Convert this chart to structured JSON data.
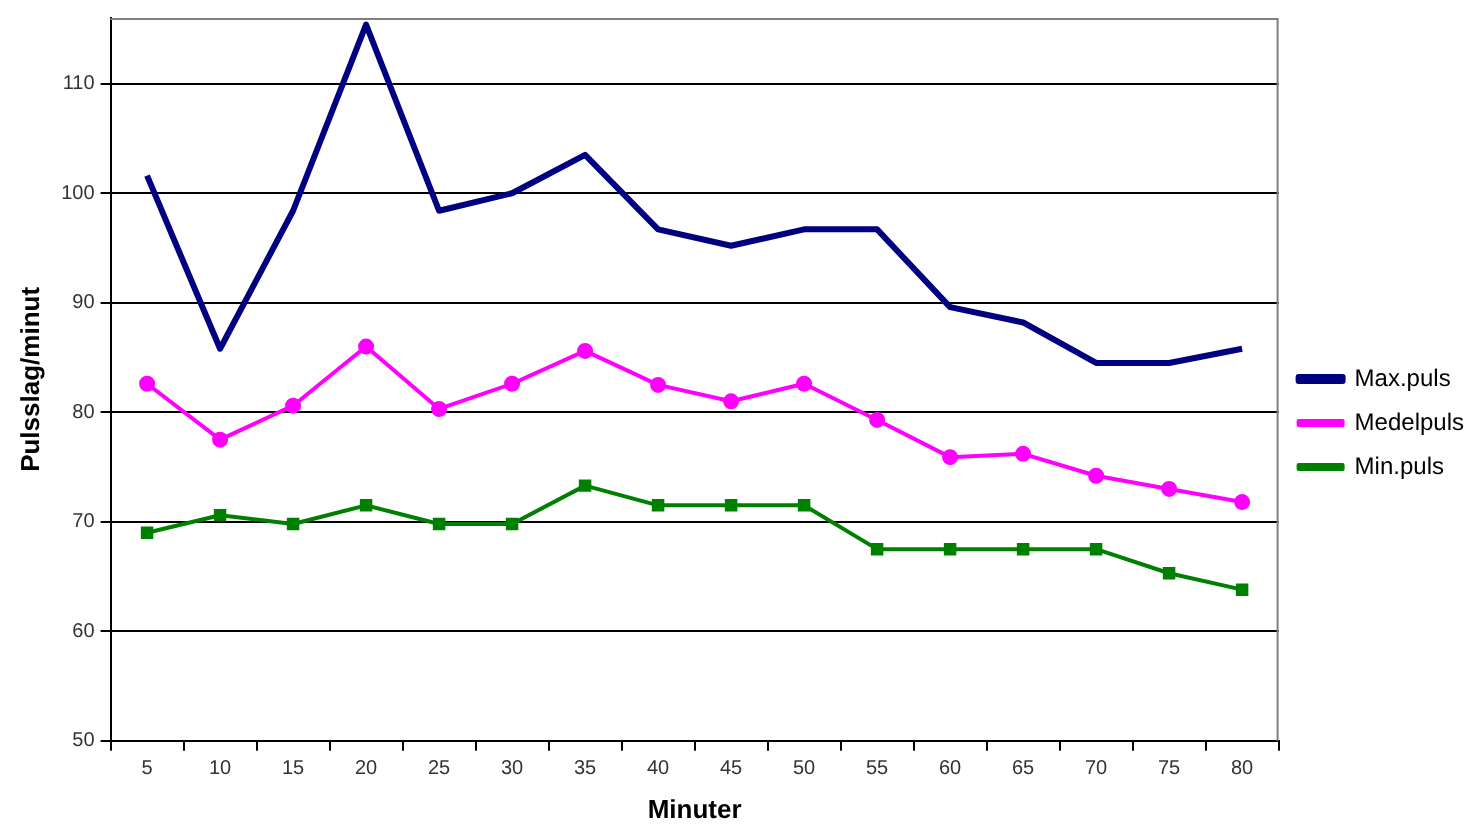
{
  "chart_data": {
    "type": "line",
    "xlabel": "Minuter",
    "ylabel": "Pulsslag/minut",
    "categories": [
      "5",
      "10",
      "15",
      "20",
      "25",
      "30",
      "35",
      "40",
      "45",
      "50",
      "55",
      "60",
      "65",
      "70",
      "75",
      "80"
    ],
    "ylim": [
      50,
      116
    ],
    "yticks": [
      50,
      60,
      70,
      80,
      90,
      100,
      110
    ],
    "grid": "y",
    "legend": "right",
    "series": [
      {
        "name": "Max.puls",
        "color": "#000080",
        "marker": "none",
        "values": [
          101.6,
          85.8,
          98.4,
          115.4,
          98.4,
          100,
          103.5,
          96.7,
          95.2,
          96.7,
          96.7,
          89.6,
          88.2,
          84.5,
          84.5,
          85.8
        ]
      },
      {
        "name": "Medelpuls",
        "color": "#ff00ff",
        "marker": "circle",
        "values": [
          82.6,
          77.5,
          80.6,
          86.0,
          80.3,
          82.6,
          85.6,
          82.5,
          81.0,
          82.6,
          79.3,
          75.9,
          76.2,
          74.2,
          73.0,
          71.8
        ]
      },
      {
        "name": "Min.puls",
        "color": "#008000",
        "marker": "square",
        "values": [
          69.0,
          70.6,
          69.8,
          71.5,
          69.8,
          69.8,
          73.3,
          71.5,
          71.5,
          71.5,
          67.5,
          67.5,
          67.5,
          67.5,
          65.3,
          63.8
        ]
      }
    ]
  }
}
